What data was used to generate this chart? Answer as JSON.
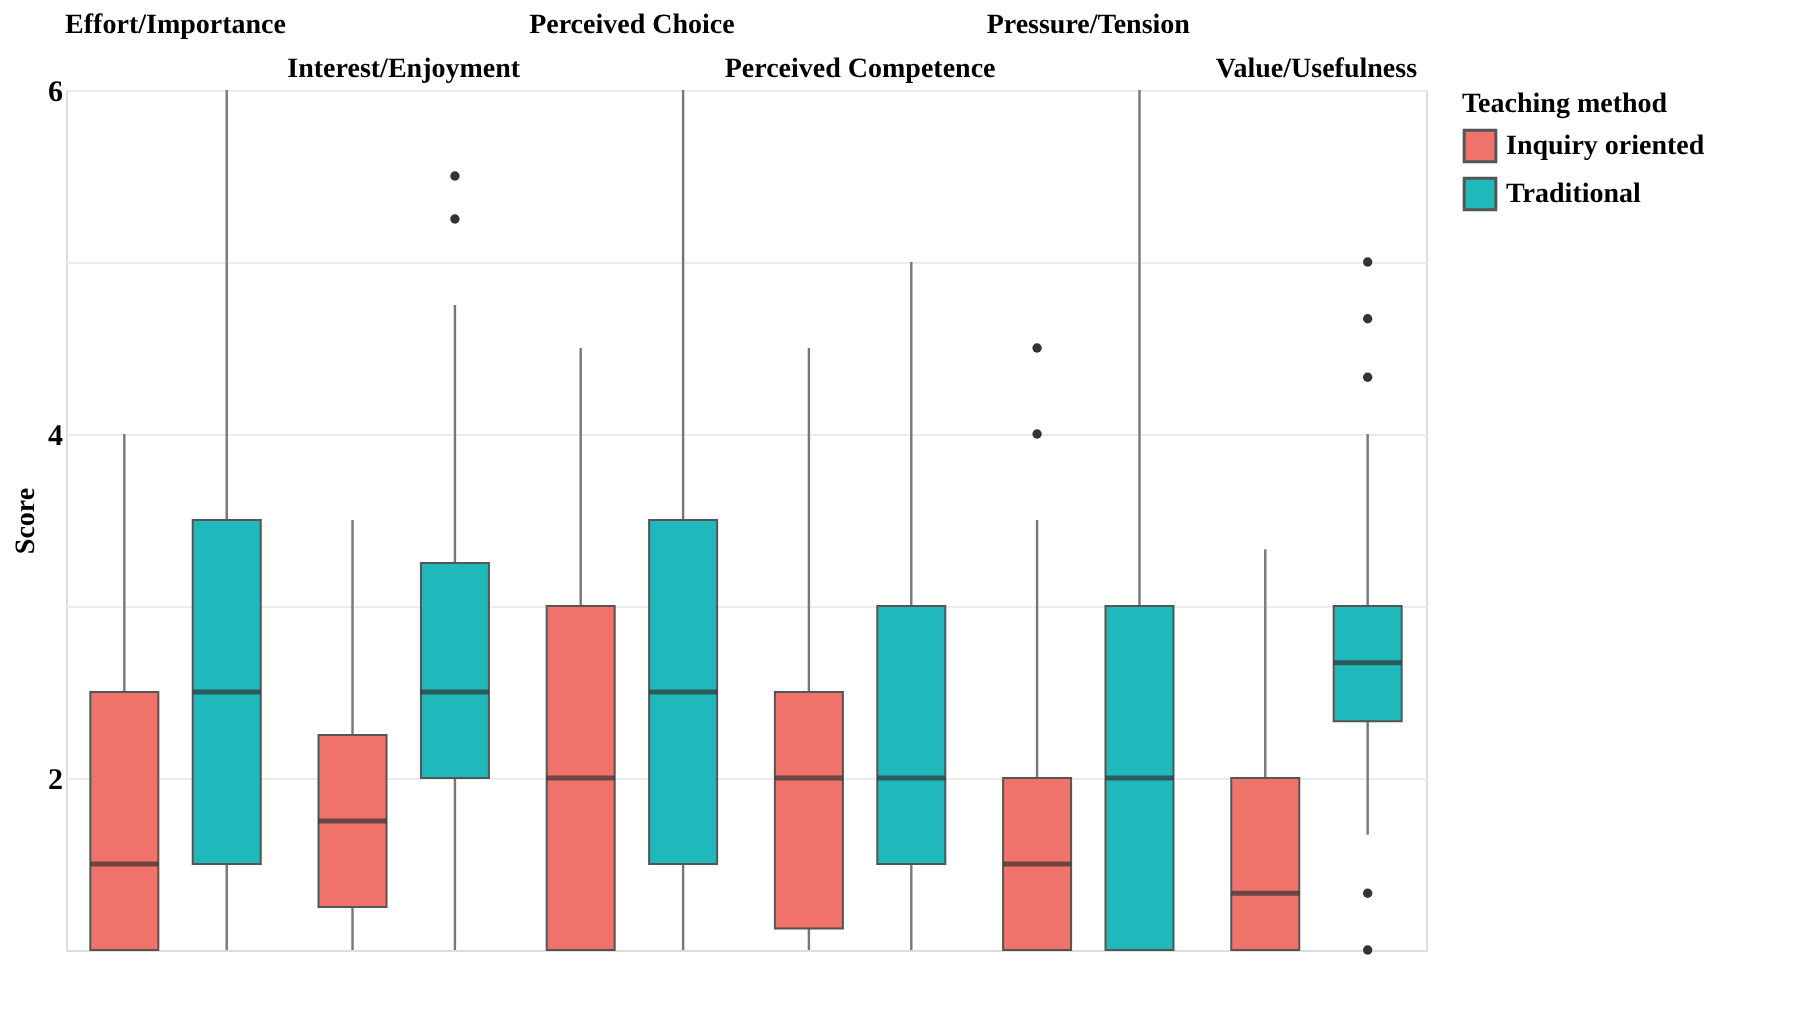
{
  "chart_data": {
    "type": "box",
    "ylabel": "Score",
    "legend_title": "Teaching method",
    "legend": "right",
    "grid": "y",
    "categories": [
      "Effort/Importance",
      "Interest/Enjoyment",
      "Perceived Choice",
      "Perceived Competence",
      "Pressure/Tension",
      "Value/Usefulness"
    ],
    "ylim": [
      1,
      6
    ],
    "yticks": [
      2,
      {
        "value": 3,
        "label": null
      },
      4,
      {
        "value": 5,
        "label": null
      },
      6
    ],
    "series": [
      {
        "name": "Inquiry oriented",
        "color": "#ef736b",
        "boxes": [
          {
            "low": 1,
            "q1": 1,
            "median": 1.5,
            "q3": 2.5,
            "high": 4
          },
          {
            "low": 1,
            "q1": 1.25,
            "median": 1.75,
            "q3": 2.25,
            "high": 3.5
          },
          {
            "low": 1,
            "q1": 1,
            "median": 2,
            "q3": 3,
            "high": 4.5
          },
          {
            "low": 1,
            "q1": 1.125,
            "median": 2,
            "q3": 2.5,
            "high": 4.5
          },
          {
            "low": 1,
            "q1": 1,
            "median": 1.5,
            "q3": 2,
            "high": 3.5,
            "outliers": [
              4,
              4.5
            ]
          },
          {
            "low": 1,
            "q1": 1,
            "median": 1.33,
            "q3": 2,
            "high": 3.33
          }
        ]
      },
      {
        "name": "Traditional",
        "color": "#1fb8bb",
        "boxes": [
          {
            "low": 1,
            "q1": 1.5,
            "median": 2.5,
            "q3": 3.5,
            "high": 6
          },
          {
            "low": 1,
            "q1": 2,
            "median": 2.5,
            "q3": 3.25,
            "high": 4.75,
            "outliers": [
              5.25,
              5.5
            ]
          },
          {
            "low": 1,
            "q1": 1.5,
            "median": 2.5,
            "q3": 3.5,
            "high": 6
          },
          {
            "low": 1,
            "q1": 1.5,
            "median": 2,
            "q3": 3,
            "high": 5
          },
          {
            "low": 1,
            "q1": 1,
            "median": 2,
            "q3": 3,
            "high": 6
          },
          {
            "low": 1.67,
            "q1": 2.33,
            "median": 2.67,
            "q3": 3,
            "high": 4,
            "outliers": [
              1,
              1.33,
              4.33,
              4.67,
              5
            ]
          }
        ]
      }
    ]
  }
}
